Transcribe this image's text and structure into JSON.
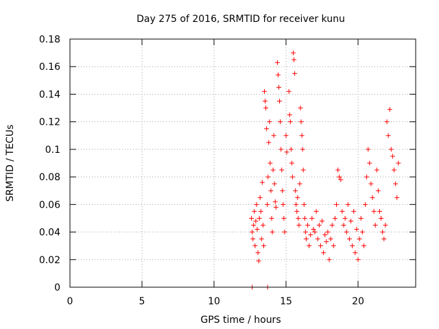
{
  "chart_data": {
    "type": "scatter",
    "title": "Day 275 of 2016, SRMTID for receiver kunu",
    "xlabel": "GPS time / hours",
    "ylabel": "SRMTID / TECUs",
    "xlim": [
      0,
      24
    ],
    "ylim": [
      0,
      0.18
    ],
    "xticks": [
      0,
      5,
      10,
      15,
      20
    ],
    "xtick_labels": [
      "0",
      "5",
      "10",
      "15",
      "20"
    ],
    "yticks": [
      0,
      0.02,
      0.04,
      0.06,
      0.08,
      0.1,
      0.12,
      0.14,
      0.16,
      0.18
    ],
    "ytick_labels": [
      "0",
      "0.02",
      "0.04",
      "0.06",
      "0.08",
      "0.1",
      "0.12",
      "0.14",
      "0.16",
      "0.18"
    ],
    "grid": true,
    "marker": "+",
    "color": "#ff0000",
    "series": [
      {
        "name": "SRMTID",
        "points": [
          [
            12.65,
            0.0
          ],
          [
            13.72,
            0.0
          ],
          [
            12.6,
            0.05
          ],
          [
            12.65,
            0.04
          ],
          [
            12.7,
            0.035
          ],
          [
            12.75,
            0.045
          ],
          [
            12.8,
            0.055
          ],
          [
            12.85,
            0.03
          ],
          [
            12.9,
            0.048
          ],
          [
            12.95,
            0.06
          ],
          [
            13.0,
            0.042
          ],
          [
            13.05,
            0.025
          ],
          [
            13.1,
            0.019
          ],
          [
            13.15,
            0.05
          ],
          [
            13.2,
            0.065
          ],
          [
            13.25,
            0.055
          ],
          [
            13.3,
            0.035
          ],
          [
            13.35,
            0.076
          ],
          [
            13.4,
            0.045
          ],
          [
            13.45,
            0.03
          ],
          [
            13.5,
            0.142
          ],
          [
            13.55,
            0.135
          ],
          [
            13.6,
            0.13
          ],
          [
            13.65,
            0.115
          ],
          [
            13.7,
            0.06
          ],
          [
            13.75,
            0.08
          ],
          [
            13.8,
            0.105
          ],
          [
            13.85,
            0.12
          ],
          [
            13.9,
            0.09
          ],
          [
            13.95,
            0.07
          ],
          [
            14.0,
            0.05
          ],
          [
            14.05,
            0.04
          ],
          [
            14.1,
            0.085
          ],
          [
            14.15,
            0.11
          ],
          [
            14.2,
            0.075
          ],
          [
            14.25,
            0.062
          ],
          [
            14.3,
            0.058
          ],
          [
            14.4,
            0.163
          ],
          [
            14.45,
            0.154
          ],
          [
            14.5,
            0.145
          ],
          [
            14.55,
            0.135
          ],
          [
            14.6,
            0.12
          ],
          [
            14.65,
            0.1
          ],
          [
            14.7,
            0.085
          ],
          [
            14.75,
            0.07
          ],
          [
            14.8,
            0.06
          ],
          [
            14.85,
            0.05
          ],
          [
            14.9,
            0.04
          ],
          [
            15.0,
            0.11
          ],
          [
            15.05,
            0.098
          ],
          [
            15.2,
            0.142
          ],
          [
            15.25,
            0.125
          ],
          [
            15.3,
            0.12
          ],
          [
            15.35,
            0.1
          ],
          [
            15.4,
            0.09
          ],
          [
            15.45,
            0.08
          ],
          [
            15.5,
            0.17
          ],
          [
            15.55,
            0.165
          ],
          [
            15.6,
            0.155
          ],
          [
            15.65,
            0.07
          ],
          [
            15.7,
            0.06
          ],
          [
            15.75,
            0.055
          ],
          [
            15.8,
            0.065
          ],
          [
            15.85,
            0.05
          ],
          [
            15.9,
            0.045
          ],
          [
            15.95,
            0.075
          ],
          [
            16.0,
            0.13
          ],
          [
            16.05,
            0.12
          ],
          [
            16.1,
            0.11
          ],
          [
            16.15,
            0.1
          ],
          [
            16.2,
            0.085
          ],
          [
            16.25,
            0.06
          ],
          [
            16.3,
            0.05
          ],
          [
            16.35,
            0.04
          ],
          [
            16.4,
            0.035
          ],
          [
            16.5,
            0.045
          ],
          [
            16.6,
            0.03
          ],
          [
            16.7,
            0.038
          ],
          [
            16.8,
            0.05
          ],
          [
            16.9,
            0.042
          ],
          [
            17.0,
            0.04
          ],
          [
            17.1,
            0.055
          ],
          [
            17.2,
            0.035
          ],
          [
            17.3,
            0.045
          ],
          [
            17.4,
            0.03
          ],
          [
            17.5,
            0.048
          ],
          [
            17.6,
            0.025
          ],
          [
            17.7,
            0.038
          ],
          [
            17.8,
            0.033
          ],
          [
            17.9,
            0.04
          ],
          [
            18.0,
            0.02
          ],
          [
            18.1,
            0.035
          ],
          [
            18.2,
            0.045
          ],
          [
            18.3,
            0.03
          ],
          [
            18.4,
            0.05
          ],
          [
            18.5,
            0.06
          ],
          [
            18.6,
            0.085
          ],
          [
            18.7,
            0.08
          ],
          [
            18.8,
            0.078
          ],
          [
            18.9,
            0.055
          ],
          [
            19.0,
            0.045
          ],
          [
            19.1,
            0.05
          ],
          [
            19.2,
            0.04
          ],
          [
            19.3,
            0.06
          ],
          [
            19.4,
            0.035
          ],
          [
            19.5,
            0.048
          ],
          [
            19.6,
            0.03
          ],
          [
            19.7,
            0.055
          ],
          [
            19.8,
            0.025
          ],
          [
            19.9,
            0.042
          ],
          [
            20.0,
            0.02
          ],
          [
            20.1,
            0.035
          ],
          [
            20.2,
            0.05
          ],
          [
            20.3,
            0.04
          ],
          [
            20.4,
            0.03
          ],
          [
            20.5,
            0.06
          ],
          [
            20.6,
            0.08
          ],
          [
            20.7,
            0.1
          ],
          [
            20.8,
            0.09
          ],
          [
            20.9,
            0.075
          ],
          [
            21.0,
            0.065
          ],
          [
            21.1,
            0.055
          ],
          [
            21.2,
            0.045
          ],
          [
            21.3,
            0.085
          ],
          [
            21.4,
            0.07
          ],
          [
            21.5,
            0.055
          ],
          [
            21.6,
            0.05
          ],
          [
            21.7,
            0.04
          ],
          [
            21.8,
            0.035
          ],
          [
            21.9,
            0.045
          ],
          [
            22.0,
            0.12
          ],
          [
            22.1,
            0.11
          ],
          [
            22.2,
            0.129
          ],
          [
            22.3,
            0.1
          ],
          [
            22.4,
            0.095
          ],
          [
            22.5,
            0.085
          ],
          [
            22.6,
            0.075
          ],
          [
            22.7,
            0.065
          ],
          [
            22.8,
            0.09
          ]
        ]
      }
    ]
  }
}
